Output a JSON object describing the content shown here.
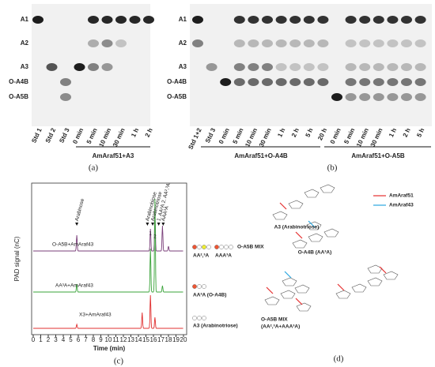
{
  "panel_a": {
    "rows": [
      "A1",
      "A2",
      "A3",
      "O-A4B",
      "O-A5B"
    ],
    "lanes": [
      "Std 1",
      "Std 2",
      "Std 3",
      "0 min",
      "5 min",
      "10 min",
      "30 min",
      "1 h",
      "2 h"
    ],
    "reaction": "AmAraf51+A3",
    "label": "(a)"
  },
  "panel_b": {
    "rows": [
      "A1",
      "A2",
      "A3",
      "O-A4B",
      "O-A5B"
    ],
    "lanes": [
      "Std 1+2",
      "Std 3",
      "0 min",
      "5 min",
      "10 min",
      "30 min",
      "1 h",
      "2 h",
      "5 h",
      "20 h",
      "0 min",
      "5 min",
      "10 min",
      "30 min",
      "1 h",
      "2 h",
      "5 h"
    ],
    "reactions": [
      "AmAraf51+O-A4B",
      "AmAraf51+O-A5B"
    ],
    "label": "(b)"
  },
  "panel_c": {
    "y_label": "PAD signal (nC)",
    "x_label": "Time (min)",
    "x_ticks": [
      "0",
      "1",
      "2",
      "3",
      "4",
      "5",
      "6",
      "7",
      "8",
      "9",
      "10",
      "11",
      "12",
      "13",
      "14",
      "15",
      "16",
      "17",
      "18",
      "19",
      "20"
    ],
    "peaks": [
      "Arabinose",
      "Arabinobiose",
      "Arabinotriose",
      "1. AA³A 2. AA²,³A",
      "AAA³A"
    ],
    "peak_numbers": [
      "1",
      "2"
    ],
    "traces": [
      "O-A5B+AmAraf43",
      "AA³A+AmAraf43",
      "X3+AmAraf43"
    ],
    "legend": [
      "O-A5B MIX",
      "AA²,³A",
      "AAA³A",
      "AA³A (O-A4B)",
      "A3 (Arabinotriose)"
    ],
    "label": "(c)"
  },
  "panel_d": {
    "enzymes": [
      "AmAraf51",
      "AmAraf43"
    ],
    "structures": [
      "A3 (Arabinotriose)",
      "O-A4B (AA³A)",
      "O-A5B MIX",
      "(AA²,³A+AAA³A)"
    ],
    "label": "(d)"
  }
}
